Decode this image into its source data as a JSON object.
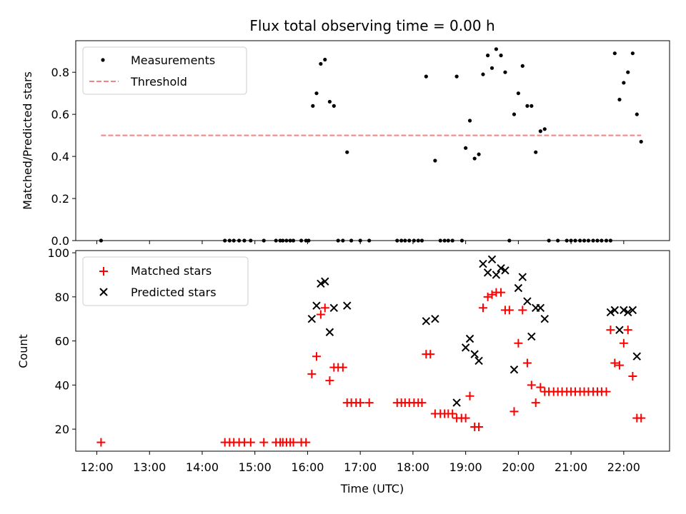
{
  "chart_data": [
    {
      "type": "scatter",
      "title": "Flux total observing time = 0.00 h",
      "xlabel": "",
      "ylabel": "Matched/Predicted stars",
      "xlim": [
        11.6,
        22.87
      ],
      "ylim": [
        0.0,
        0.95
      ],
      "yticks": [
        0.0,
        0.2,
        0.4,
        0.6,
        0.8
      ],
      "ytick_labels": [
        "0.0",
        "0.2",
        "0.4",
        "0.6",
        "0.8"
      ],
      "xticks": [
        12,
        13,
        14,
        15,
        16,
        17,
        18,
        19,
        20,
        21,
        22
      ],
      "legend_position": "upper left",
      "grid": false,
      "series": [
        {
          "name": "Measurements",
          "marker": "dot",
          "color": "#000000",
          "x": [
            12.08,
            14.43,
            14.52,
            14.6,
            14.7,
            14.8,
            14.92,
            15.17,
            15.4,
            15.48,
            15.53,
            15.6,
            15.67,
            15.73,
            15.88,
            15.97,
            16.02,
            16.1,
            16.17,
            16.25,
            16.33,
            16.42,
            16.5,
            16.58,
            16.67,
            16.75,
            16.83,
            17.0,
            17.17,
            17.7,
            17.78,
            17.85,
            17.93,
            18.02,
            18.1,
            18.17,
            18.25,
            18.42,
            18.52,
            18.6,
            18.67,
            18.75,
            18.83,
            18.93,
            19.0,
            19.08,
            19.17,
            19.25,
            19.33,
            19.42,
            19.5,
            19.58,
            19.67,
            19.75,
            19.83,
            19.92,
            20.0,
            20.08,
            20.17,
            20.25,
            20.33,
            20.42,
            20.5,
            20.58,
            20.75,
            20.92,
            21.0,
            21.08,
            21.17,
            21.25,
            21.33,
            21.42,
            21.5,
            21.58,
            21.67,
            21.75,
            21.83,
            21.92,
            22.0,
            22.08,
            22.17,
            22.25,
            22.33
          ],
          "y": [
            0.0,
            0.0,
            0.0,
            0.0,
            0.0,
            0.0,
            0.0,
            0.0,
            0.0,
            0.0,
            0.0,
            0.0,
            0.0,
            0.0,
            0.0,
            0.0,
            0.0,
            0.64,
            0.7,
            0.84,
            0.86,
            0.66,
            0.64,
            0.0,
            0.0,
            0.42,
            0.0,
            0.0,
            0.0,
            0.0,
            0.0,
            0.0,
            0.0,
            0.0,
            0.0,
            0.0,
            0.78,
            0.38,
            0.0,
            0.0,
            0.0,
            0.0,
            0.78,
            0.0,
            0.44,
            0.57,
            0.39,
            0.41,
            0.79,
            0.88,
            0.82,
            0.91,
            0.88,
            0.8,
            0.0,
            0.6,
            0.7,
            0.83,
            0.64,
            0.64,
            0.42,
            0.52,
            0.53,
            0.0,
            0.0,
            0.0,
            0.0,
            0.0,
            0.0,
            0.0,
            0.0,
            0.0,
            0.0,
            0.0,
            0.0,
            0.0,
            0.89,
            0.67,
            0.75,
            0.8,
            0.89,
            0.6,
            0.47
          ]
        },
        {
          "name": "Threshold",
          "marker": "dashed-line",
          "color": "#ff7f7f",
          "x": [
            12.08,
            22.33
          ],
          "y": [
            0.5,
            0.5
          ]
        }
      ]
    },
    {
      "type": "scatter",
      "title": "",
      "xlabel": "Time (UTC)",
      "ylabel": "Count",
      "xlim": [
        11.6,
        22.87
      ],
      "ylim": [
        10,
        101
      ],
      "yticks": [
        20,
        40,
        60,
        80,
        100
      ],
      "ytick_labels": [
        "20",
        "40",
        "60",
        "80",
        "100"
      ],
      "xticks": [
        12,
        13,
        14,
        15,
        16,
        17,
        18,
        19,
        20,
        21,
        22
      ],
      "xtick_labels": [
        "12:00",
        "13:00",
        "14:00",
        "15:00",
        "16:00",
        "17:00",
        "18:00",
        "19:00",
        "20:00",
        "21:00",
        "22:00"
      ],
      "legend_position": "upper left",
      "grid": false,
      "series": [
        {
          "name": "Matched stars",
          "marker": "plus",
          "color": "#ff0000",
          "x": [
            12.08,
            14.43,
            14.52,
            14.6,
            14.7,
            14.8,
            14.92,
            15.17,
            15.4,
            15.48,
            15.53,
            15.6,
            15.67,
            15.73,
            15.88,
            15.97,
            16.08,
            16.17,
            16.25,
            16.33,
            16.42,
            16.5,
            16.58,
            16.67,
            16.75,
            16.83,
            16.92,
            17.0,
            17.17,
            17.7,
            17.78,
            17.85,
            17.93,
            18.02,
            18.1,
            18.17,
            18.25,
            18.33,
            18.42,
            18.52,
            18.6,
            18.67,
            18.75,
            18.83,
            18.92,
            19.0,
            19.08,
            19.17,
            19.25,
            19.33,
            19.42,
            19.5,
            19.58,
            19.67,
            19.75,
            19.83,
            19.92,
            20.0,
            20.08,
            20.17,
            20.25,
            20.33,
            20.42,
            20.5,
            20.58,
            20.67,
            20.75,
            20.83,
            20.92,
            21.0,
            21.08,
            21.17,
            21.25,
            21.33,
            21.42,
            21.5,
            21.58,
            21.67,
            21.75,
            21.83,
            21.92,
            22.0,
            22.08,
            22.17,
            22.25,
            22.33
          ],
          "y": [
            14,
            14,
            14,
            14,
            14,
            14,
            14,
            14,
            14,
            14,
            14,
            14,
            14,
            14,
            14,
            14,
            45,
            53,
            72,
            75,
            42,
            48,
            48,
            48,
            32,
            32,
            32,
            32,
            32,
            32,
            32,
            32,
            32,
            32,
            32,
            32,
            54,
            54,
            27,
            27,
            27,
            27,
            27,
            25,
            25,
            25,
            35,
            21,
            21,
            75,
            80,
            81,
            82,
            82,
            74,
            74,
            28,
            59,
            74,
            50,
            40,
            32,
            39,
            37,
            37,
            37,
            37,
            37,
            37,
            37,
            37,
            37,
            37,
            37,
            37,
            37,
            37,
            37,
            65,
            50,
            49,
            59,
            65,
            44,
            25,
            25
          ]
        },
        {
          "name": "Predicted stars",
          "marker": "x",
          "color": "#000000",
          "x": [
            16.08,
            16.17,
            16.25,
            16.33,
            16.42,
            16.5,
            16.75,
            18.25,
            18.42,
            18.83,
            19.0,
            19.08,
            19.17,
            19.25,
            19.33,
            19.42,
            19.5,
            19.58,
            19.67,
            19.75,
            19.92,
            20.0,
            20.08,
            20.17,
            20.25,
            20.33,
            20.42,
            20.5,
            21.75,
            21.83,
            21.92,
            22.0,
            22.08,
            22.17,
            22.25
          ],
          "y": [
            70,
            76,
            86,
            87,
            64,
            75,
            76,
            69,
            70,
            32,
            57,
            61,
            54,
            51,
            95,
            91,
            97,
            90,
            93,
            92,
            47,
            84,
            89,
            78,
            62,
            75,
            75,
            70,
            73,
            74,
            65,
            74,
            73,
            74,
            53
          ]
        }
      ]
    }
  ]
}
